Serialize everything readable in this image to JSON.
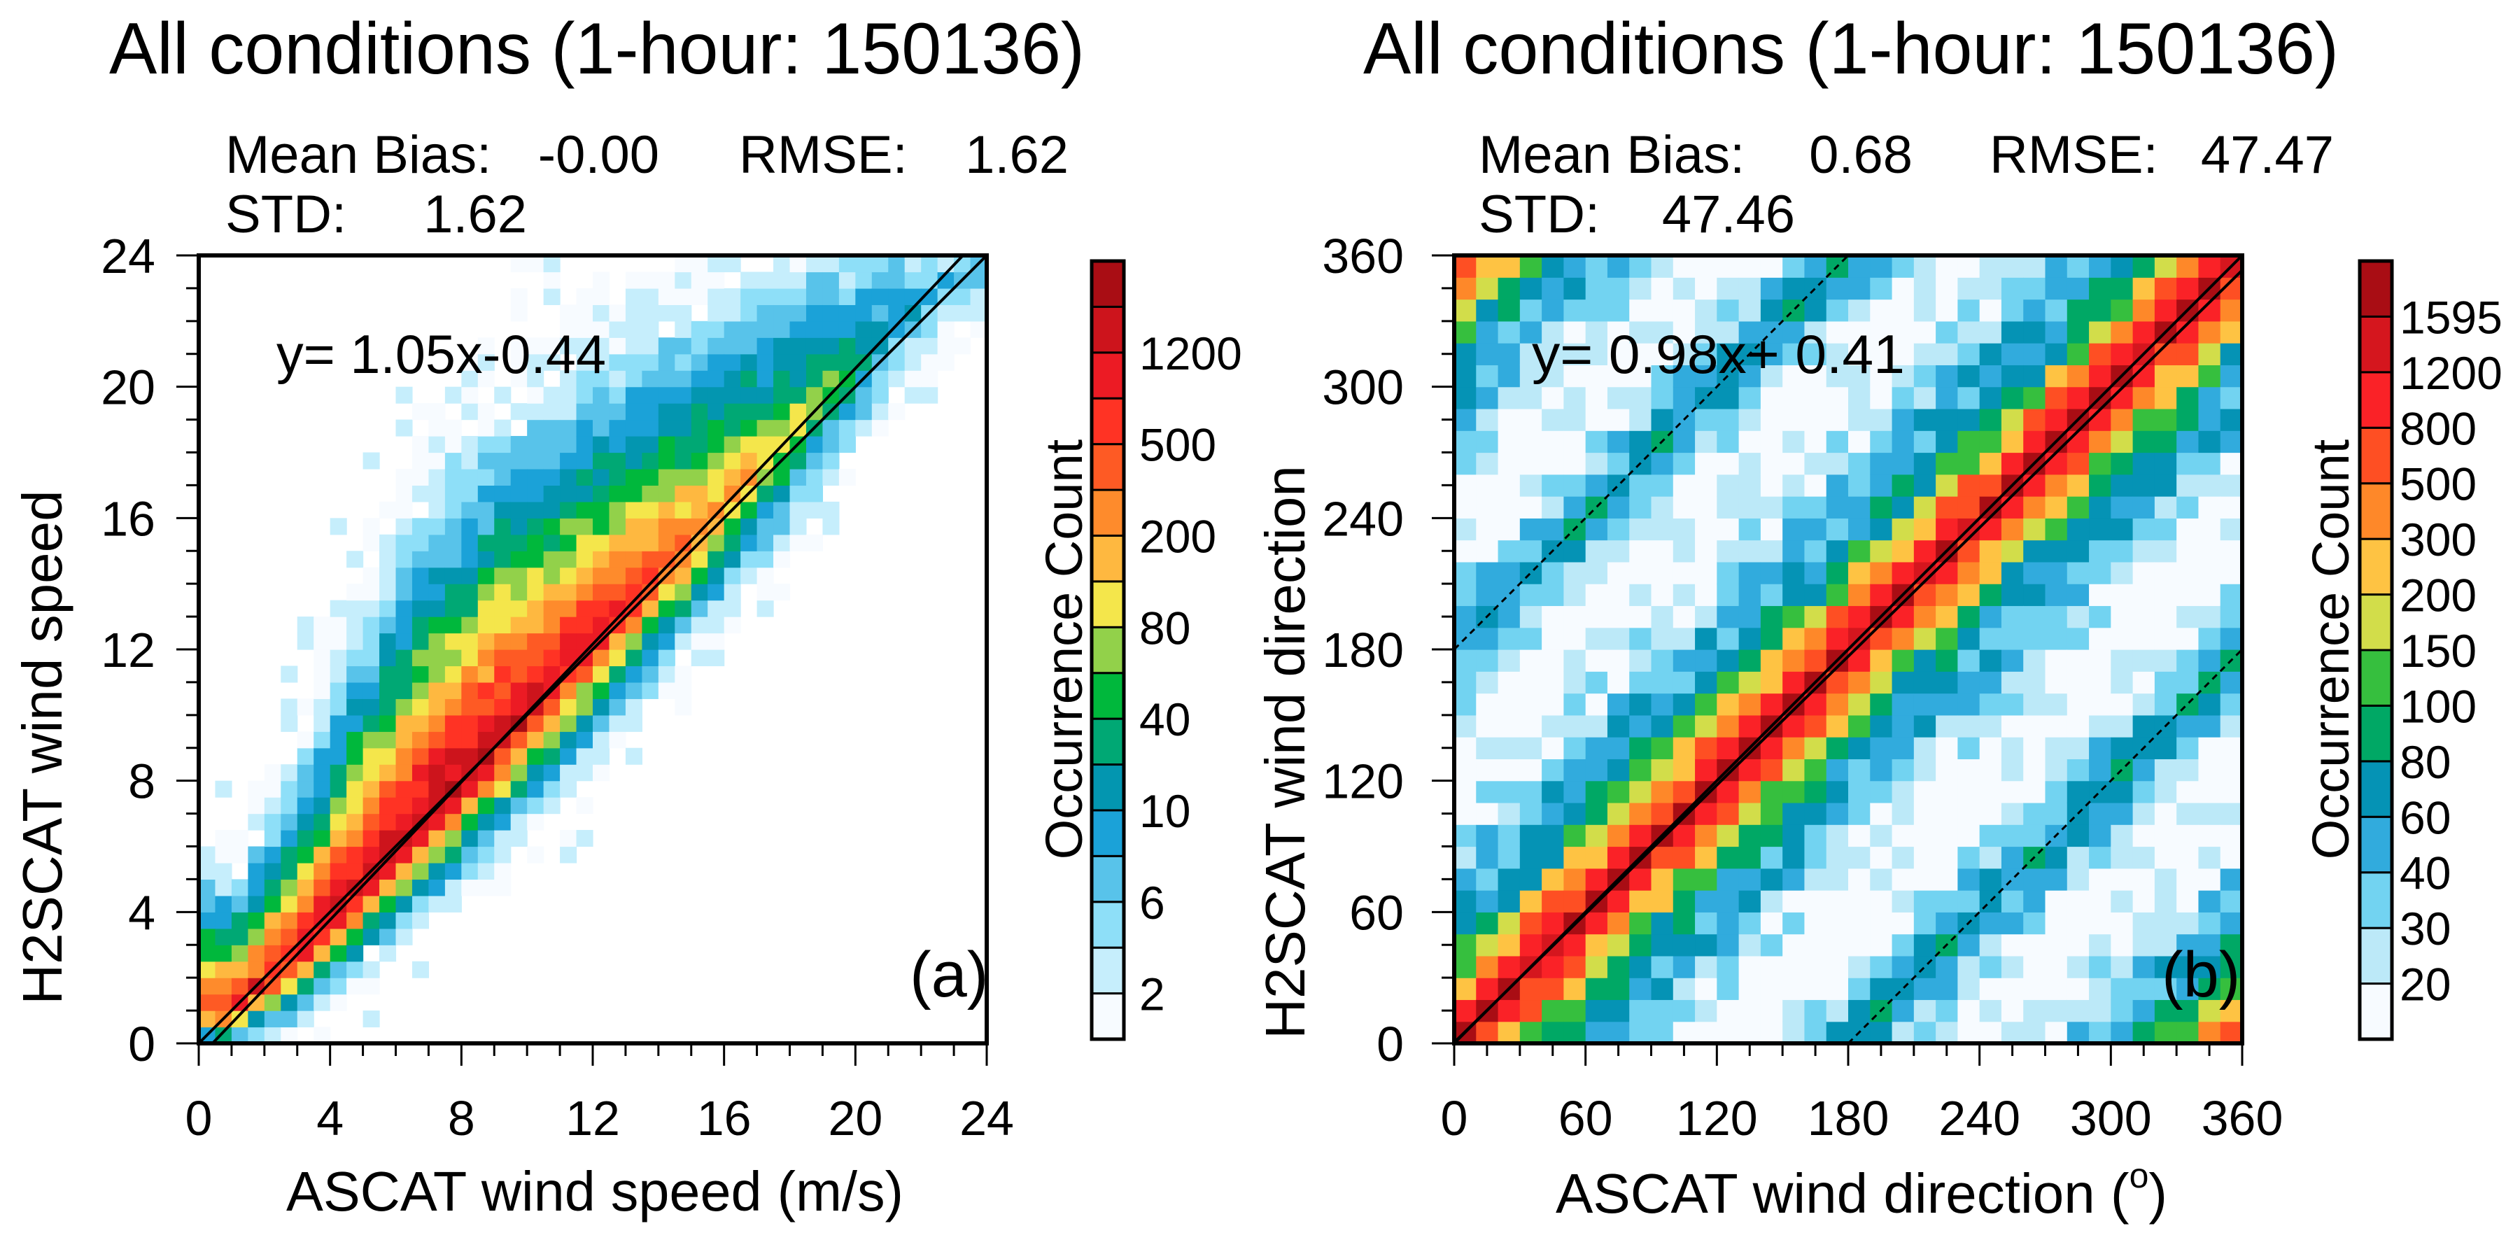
{
  "chart_data": [
    {
      "panel": "a",
      "type": "heatmap",
      "title": "All conditions (1-hour: 150136)",
      "stats": {
        "mean_bias_label": "Mean Bias:",
        "mean_bias": "-0.00",
        "rmse_label": "RMSE:",
        "rmse": "1.62",
        "std_label": "STD:",
        "std": "1.62"
      },
      "xlabel": "ASCAT wind speed  (m/s)",
      "ylabel": "H2SCAT wind speed",
      "xlim": [
        0,
        24
      ],
      "ylim": [
        0,
        24
      ],
      "tick_values": [
        0,
        4,
        8,
        12,
        16,
        20,
        24
      ],
      "tick_labels": [
        "0",
        "4",
        "8",
        "12",
        "16",
        "20",
        "24"
      ],
      "minor_tick_step": 1,
      "bin_size": 0.5,
      "equation": "y= 1.05x-0.44",
      "fit_line": {
        "slope": 1.05,
        "intercept": -0.44
      },
      "reference_line": {
        "slope": 1,
        "intercept": 0
      },
      "panel_label": "(a)",
      "colorbar": {
        "label": "Occurrence Count",
        "tick_labels": [
          "2",
          "6",
          "10",
          "40",
          "80",
          "200",
          "500",
          "1200"
        ],
        "label_every": 2,
        "colors": [
          "#f7fbff",
          "#c6eefc",
          "#8edff8",
          "#58c3ea",
          "#1ba2d8",
          "#0396b0",
          "#00a874",
          "#00b83c",
          "#92d14a",
          "#f4e64b",
          "#feb840",
          "#fe8b2c",
          "#fe5a24",
          "#ff3324",
          "#ec1b24",
          "#cd141c",
          "#a90d14"
        ]
      },
      "density_profile": {
        "x": [
          1,
          3,
          5,
          7,
          9,
          11,
          13,
          15,
          17,
          19,
          21,
          23
        ],
        "ridge_y": [
          1.0,
          2.7,
          4.8,
          6.9,
          9.0,
          11.1,
          13.2,
          15.3,
          17.4,
          19.6,
          21.8,
          23.5
        ],
        "ridge_color_class": [
          14,
          15,
          16,
          16,
          16,
          15,
          14,
          12,
          10,
          8,
          5,
          3
        ],
        "spread_above": [
          5,
          7,
          10,
          12,
          12,
          11,
          10,
          9,
          8,
          6,
          4,
          2
        ],
        "spread_below": [
          1.5,
          2.5,
          3,
          3.5,
          4,
          4,
          4,
          4,
          4,
          3.5,
          3,
          2
        ]
      }
    },
    {
      "panel": "b",
      "type": "heatmap",
      "title": "All conditions (1-hour: 150136)",
      "stats": {
        "mean_bias_label": "Mean Bias:",
        "mean_bias": "0.68",
        "rmse_label": "RMSE:",
        "rmse": "47.47",
        "std_label": "STD:",
        "std": "47.46"
      },
      "xlabel": "ASCAT wind direction (",
      "xlabel_degree": "o",
      "xlabel_close": ")",
      "ylabel": "H2SCAT wind direction",
      "xlim": [
        0,
        360
      ],
      "ylim": [
        0,
        360
      ],
      "tick_values": [
        0,
        60,
        120,
        180,
        240,
        300,
        360
      ],
      "tick_labels": [
        "0",
        "60",
        "120",
        "180",
        "240",
        "300",
        "360"
      ],
      "minor_tick_step": 15,
      "bin_size": 10,
      "equation": "y= 0.98x+ 0.41",
      "fit_line": {
        "slope": 0.98,
        "intercept": 0.41
      },
      "reference_line": {
        "slope": 1,
        "intercept": 0
      },
      "dotted_lines": [
        {
          "slope": 1,
          "intercept": 180
        },
        {
          "slope": 1,
          "intercept": -180
        }
      ],
      "panel_label": "(b)",
      "colorbar": {
        "label": "Occurrence Count",
        "tick_labels": [
          "20",
          "30",
          "40",
          "60",
          "80",
          "100",
          "150",
          "200",
          "300",
          "500",
          "800",
          "1200",
          "1595"
        ],
        "label_every": 1,
        "colors": [
          "#f7fbff",
          "#bce9f8",
          "#72d3f1",
          "#31abdd",
          "#0593b5",
          "#00a865",
          "#36bf3e",
          "#d2dd4a",
          "#fec343",
          "#fe8829",
          "#fe4f23",
          "#fa2227",
          "#d5161e",
          "#a90d14"
        ]
      },
      "density_profile": {
        "offset_bins": [
          0,
          1,
          2,
          3,
          4,
          5,
          6,
          7,
          8,
          9,
          10,
          11,
          12,
          13,
          14,
          15,
          16,
          17,
          18
        ],
        "color_class": [
          13,
          11,
          9,
          7,
          5,
          4,
          3,
          3,
          2,
          1,
          1,
          0,
          0,
          0,
          0,
          1,
          2,
          3,
          4
        ]
      }
    }
  ]
}
